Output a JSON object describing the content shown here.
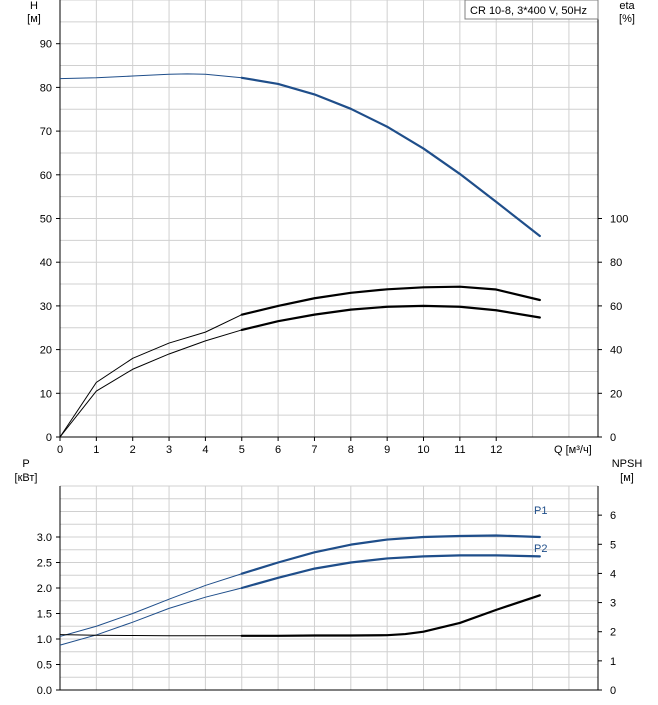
{
  "chart_data": [
    {
      "type": "line",
      "legend_title": "CR 10-8, 3*400 V, 50Hz",
      "left_axis": {
        "label_line1": "H",
        "label_line2": "[м]",
        "ylim": [
          0,
          100
        ],
        "ticks": [
          0,
          10,
          20,
          30,
          40,
          50,
          60,
          70,
          80,
          90
        ]
      },
      "right_axis": {
        "label_line1": "eta",
        "label_line2": "[%]",
        "ylim": [
          0,
          200
        ],
        "ticks": [
          0,
          20,
          40,
          60,
          80,
          100
        ]
      },
      "x_axis": {
        "label": "Q [м³/ч]",
        "xlim": [
          0,
          14.8
        ],
        "ticks": [
          0,
          1,
          2,
          3,
          4,
          5,
          6,
          7,
          8,
          9,
          10,
          11,
          12
        ]
      },
      "grid": true,
      "series": [
        {
          "axis": "left",
          "color": "#1f4e8a",
          "x": [
            0,
            1,
            2,
            3,
            3.5,
            4,
            5,
            6,
            7,
            8,
            9,
            10,
            11,
            12,
            13.2
          ],
          "y": [
            82,
            82.2,
            82.6,
            83,
            83.1,
            83,
            82.2,
            80.8,
            78.4,
            75.1,
            71,
            66,
            60.2,
            53.8,
            46
          ]
        },
        {
          "axis": "right",
          "color": "#000000",
          "x": [
            0,
            1,
            2,
            3,
            4,
            5,
            6,
            7,
            8,
            9,
            10,
            11,
            12,
            13.2
          ],
          "y": [
            0,
            25,
            36,
            43,
            48,
            56,
            60,
            63.5,
            66,
            67.6,
            68.5,
            68.8,
            67.5,
            62.7
          ]
        },
        {
          "axis": "right",
          "color": "#000000",
          "x": [
            0,
            1,
            2,
            3,
            4,
            5,
            6,
            7,
            8,
            9,
            10,
            11,
            12,
            13.2
          ],
          "y": [
            0,
            21,
            31,
            38,
            44,
            49,
            53,
            56,
            58.3,
            59.6,
            60,
            59.6,
            58,
            54.7
          ]
        }
      ]
    },
    {
      "type": "line",
      "left_axis": {
        "label_line1": "P",
        "label_line2": "[кВт]",
        "ylim": [
          0,
          4
        ],
        "ticks": [
          0.0,
          0.5,
          1.0,
          1.5,
          2.0,
          2.5,
          3.0
        ],
        "tick_labels": [
          "0.0",
          "0.5",
          "1.0",
          "1.5",
          "2.0",
          "2.5",
          "3.0"
        ]
      },
      "right_axis": {
        "label_line1": "NPSH",
        "label_line2": "[м]",
        "ylim": [
          0,
          7
        ],
        "ticks": [
          0,
          1,
          2,
          3,
          4,
          5,
          6
        ]
      },
      "xlim": [
        0,
        14.8
      ],
      "grid": true,
      "series": [
        {
          "name": "P1",
          "axis": "left",
          "color": "#1f4e8a",
          "x": [
            0,
            1,
            2,
            3,
            4,
            5,
            6,
            7,
            8,
            9,
            10,
            11,
            12,
            13.2
          ],
          "y": [
            1.05,
            1.25,
            1.5,
            1.78,
            2.05,
            2.28,
            2.5,
            2.7,
            2.85,
            2.95,
            3.0,
            3.02,
            3.03,
            3.0
          ]
        },
        {
          "name": "P2",
          "axis": "left",
          "color": "#1f4e8a",
          "x": [
            0,
            1,
            2,
            3,
            4,
            5,
            6,
            7,
            8,
            9,
            10,
            11,
            12,
            13.2
          ],
          "y": [
            0.88,
            1.08,
            1.33,
            1.6,
            1.82,
            2.0,
            2.2,
            2.38,
            2.5,
            2.58,
            2.62,
            2.64,
            2.64,
            2.62
          ]
        },
        {
          "axis": "right",
          "color": "#000000",
          "x": [
            0,
            1,
            2,
            3,
            4,
            5,
            6,
            7,
            8,
            9,
            9.5,
            10,
            11,
            12,
            13.2
          ],
          "y": [
            1.9,
            1.88,
            1.87,
            1.86,
            1.86,
            1.86,
            1.86,
            1.87,
            1.87,
            1.88,
            1.92,
            2.0,
            2.3,
            2.75,
            3.25
          ]
        }
      ]
    }
  ]
}
